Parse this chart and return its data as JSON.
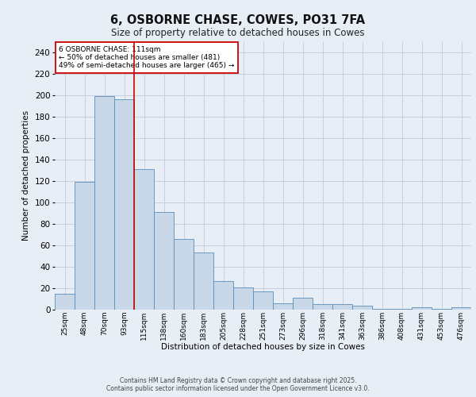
{
  "title": "6, OSBORNE CHASE, COWES, PO31 7FA",
  "subtitle": "Size of property relative to detached houses in Cowes",
  "xlabel": "Distribution of detached houses by size in Cowes",
  "ylabel": "Number of detached properties",
  "categories": [
    "25sqm",
    "48sqm",
    "70sqm",
    "93sqm",
    "115sqm",
    "138sqm",
    "160sqm",
    "183sqm",
    "205sqm",
    "228sqm",
    "251sqm",
    "273sqm",
    "296sqm",
    "318sqm",
    "341sqm",
    "363sqm",
    "386sqm",
    "408sqm",
    "431sqm",
    "453sqm",
    "476sqm"
  ],
  "bar_heights": [
    15,
    119,
    199,
    196,
    131,
    91,
    66,
    53,
    27,
    21,
    17,
    6,
    11,
    5,
    5,
    4,
    1,
    1,
    2,
    1,
    2
  ],
  "bar_color": "#c8d8e8",
  "bar_edge_color": "#5b8db8",
  "grid_color": "#c8cfe0",
  "bg_color": "#e8eef6",
  "vline_color": "#cc0000",
  "vline_x": 3.5,
  "annotation_text": "6 OSBORNE CHASE: 111sqm\n← 50% of detached houses are smaller (481)\n49% of semi-detached houses are larger (465) →",
  "annotation_box_color": "#cc0000",
  "footer_line1": "Contains HM Land Registry data © Crown copyright and database right 2025.",
  "footer_line2": "Contains public sector information licensed under the Open Government Licence v3.0.",
  "ylim": [
    0,
    250
  ],
  "yticks": [
    0,
    20,
    40,
    60,
    80,
    100,
    120,
    140,
    160,
    180,
    200,
    220,
    240
  ]
}
